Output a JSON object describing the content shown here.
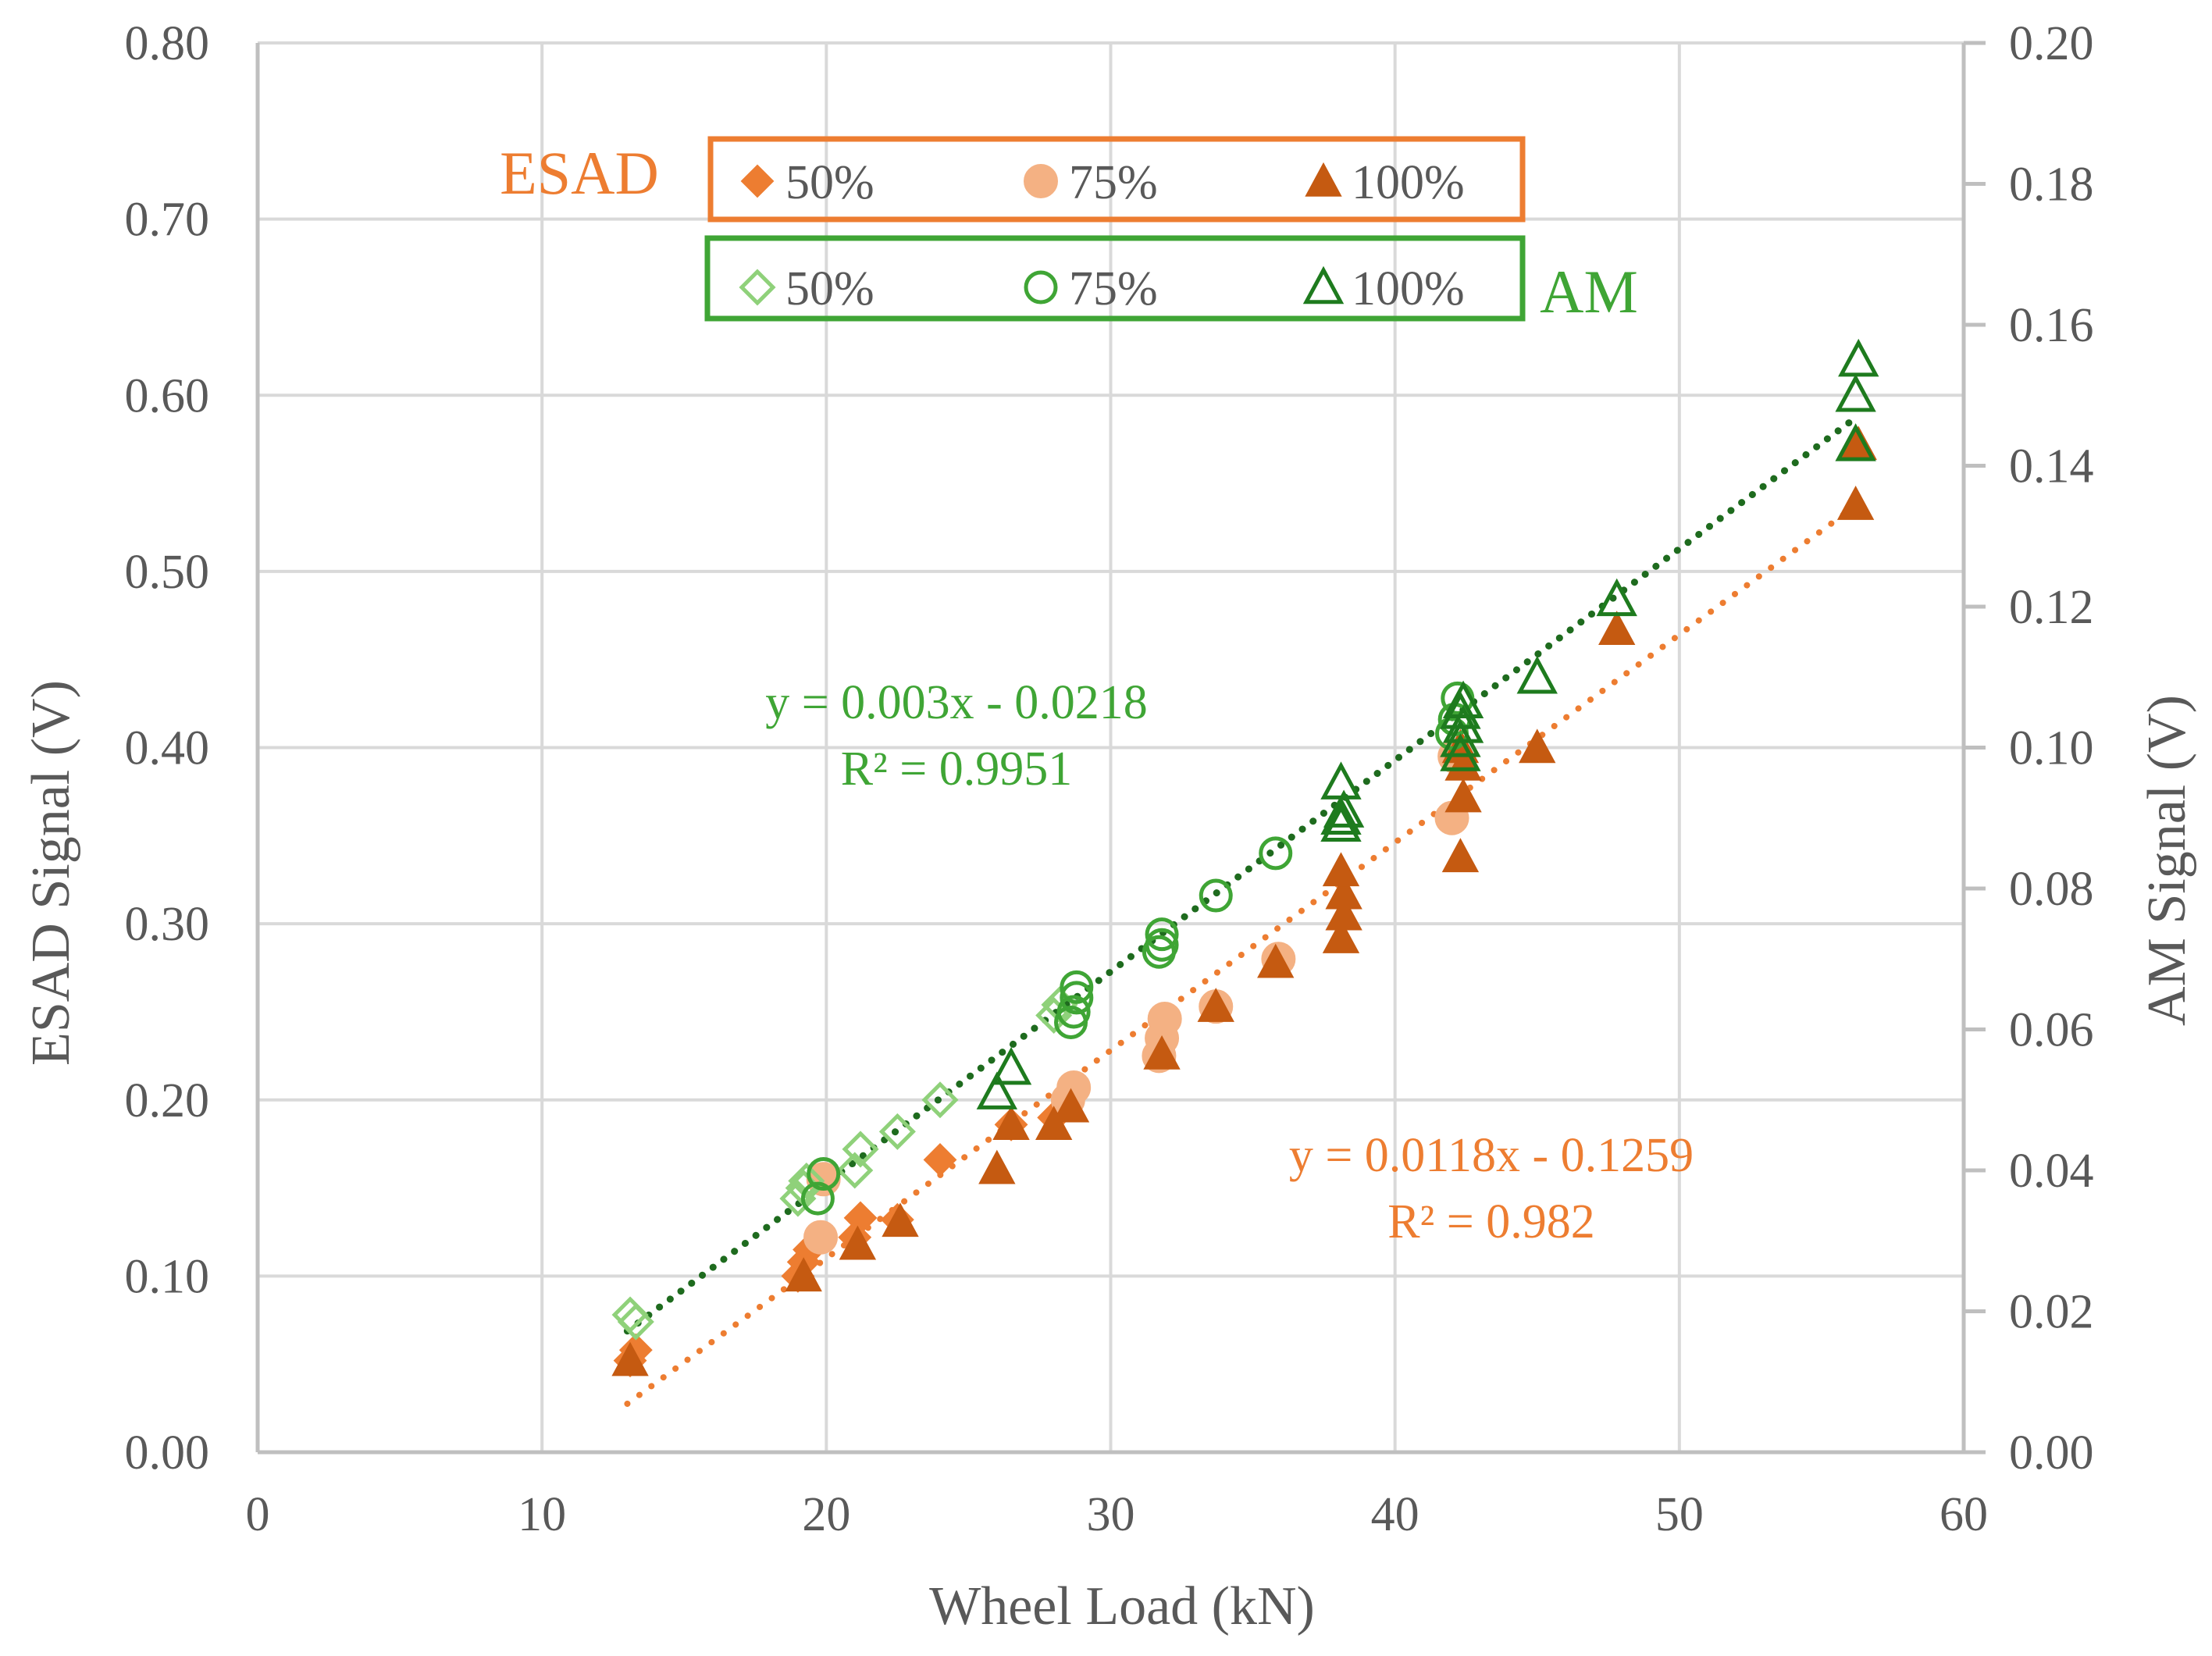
{
  "chart_data": {
    "type": "scatter",
    "xlabel": "Wheel Load (kN)",
    "ylabel": "ESAD Signal (V)",
    "y2label": "AM Signal (V)",
    "xlim": [
      0,
      60
    ],
    "ylim": [
      0,
      0.8
    ],
    "y2lim": [
      0,
      0.2
    ],
    "grid": true,
    "x_ticks": [
      "0",
      "10",
      "20",
      "30",
      "40",
      "50",
      "60"
    ],
    "y_ticks": [
      "0.00",
      "0.10",
      "0.20",
      "0.30",
      "0.40",
      "0.50",
      "0.60",
      "0.70",
      "0.80"
    ],
    "y2_ticks": [
      "0.00",
      "0.02",
      "0.04",
      "0.06",
      "0.08",
      "0.10",
      "0.12",
      "0.14",
      "0.16",
      "0.18",
      "0.20"
    ],
    "colors": {
      "esad_50": "#ED7D31",
      "esad_75": "#F4B183",
      "esad_100": "#C55A11",
      "am_50": "#8FD17A",
      "am_75": "#3FA535",
      "am_100": "#1E7B1E",
      "esad_trend": "#ED7D31",
      "am_trend": "#1E6B1E",
      "esad_text": "#ED7D31",
      "am_text": "#3FA535"
    },
    "legend": {
      "esad": {
        "title": "ESAD",
        "labels": [
          "50%",
          "75%",
          "100%"
        ]
      },
      "am": {
        "title": "AM",
        "labels": [
          "50%",
          "75%",
          "100%"
        ]
      }
    },
    "trendlines": {
      "am": {
        "equation": "y = 0.003x - 0.0218",
        "r2": "R² = 0.9951",
        "slope": 0.003,
        "intercept": -0.0218,
        "x_range": [
          13,
          56.2
        ],
        "axis": "y2"
      },
      "esad": {
        "equation": "y = 0.0118x - 0.1259",
        "r2": "R² = 0.982",
        "slope": 0.0118,
        "intercept": -0.1259,
        "x_range": [
          13,
          56.2
        ],
        "axis": "y"
      }
    },
    "series": [
      {
        "name": "ESAD 50%",
        "axis": "y",
        "marker": "diamond-filled",
        "color_key": "esad_50",
        "x": [
          13.1,
          13.3,
          19.0,
          19.2,
          19.4,
          21.0,
          21.2,
          22.5,
          24.0,
          26.5,
          28.0
        ],
        "y": [
          0.052,
          0.058,
          0.1,
          0.108,
          0.115,
          0.122,
          0.133,
          0.132,
          0.166,
          0.186,
          0.19
        ]
      },
      {
        "name": "ESAD 75%",
        "axis": "y",
        "marker": "circle-filled",
        "color_key": "esad_75",
        "x": [
          19.8,
          19.9,
          28.5,
          28.7,
          31.7,
          31.8,
          31.9,
          33.7,
          35.9,
          42.0,
          42.1
        ],
        "y": [
          0.122,
          0.155,
          0.2,
          0.207,
          0.225,
          0.235,
          0.246,
          0.253,
          0.28,
          0.36,
          0.395
        ]
      },
      {
        "name": "ESAD 100%",
        "axis": "y",
        "marker": "triangle-filled",
        "color_key": "esad_100",
        "x": [
          13.1,
          19.2,
          21.1,
          22.6,
          26.0,
          26.5,
          28.0,
          28.6,
          31.8,
          33.7,
          35.8,
          38.1,
          38.2,
          38.2,
          38.1,
          42.3,
          42.4,
          42.4,
          42.3,
          45.0,
          47.8,
          56.2,
          56.3
        ],
        "y": [
          0.052,
          0.1,
          0.118,
          0.131,
          0.161,
          0.186,
          0.186,
          0.196,
          0.226,
          0.253,
          0.278,
          0.292,
          0.305,
          0.317,
          0.33,
          0.338,
          0.372,
          0.39,
          0.4,
          0.4,
          0.467,
          0.538,
          0.572
        ]
      },
      {
        "name": "AM 50%",
        "axis": "y2",
        "marker": "diamond-open",
        "color_key": "am_50",
        "x": [
          13.1,
          13.3,
          19.0,
          19.2,
          19.3,
          21.0,
          21.2,
          22.5,
          24.0,
          28.0,
          28.2
        ],
        "y": [
          0.0195,
          0.0185,
          0.036,
          0.0375,
          0.0385,
          0.04,
          0.043,
          0.0455,
          0.05,
          0.062,
          0.0635
        ]
      },
      {
        "name": "AM 75%",
        "axis": "y2",
        "marker": "circle-open",
        "color_key": "am_75",
        "x": [
          19.7,
          19.9,
          28.6,
          28.7,
          28.8,
          28.8,
          31.7,
          31.8,
          31.8,
          33.7,
          35.8,
          42.0,
          42.1,
          42.2
        ],
        "y": [
          0.036,
          0.0395,
          0.061,
          0.0625,
          0.0645,
          0.066,
          0.071,
          0.072,
          0.0735,
          0.079,
          0.085,
          0.102,
          0.104,
          0.107
        ]
      },
      {
        "name": "AM 100%",
        "axis": "y2",
        "marker": "triangle-open",
        "color_key": "am_100",
        "x": [
          26.0,
          26.5,
          38.1,
          38.1,
          38.2,
          38.1,
          42.3,
          42.3,
          42.4,
          42.3,
          42.4,
          45.0,
          47.8,
          56.2,
          56.2,
          56.3
        ],
        "y": [
          0.051,
          0.0545,
          0.089,
          0.09,
          0.091,
          0.095,
          0.099,
          0.101,
          0.103,
          0.105,
          0.1065,
          0.11,
          0.121,
          0.143,
          0.15,
          0.155
        ]
      }
    ]
  }
}
